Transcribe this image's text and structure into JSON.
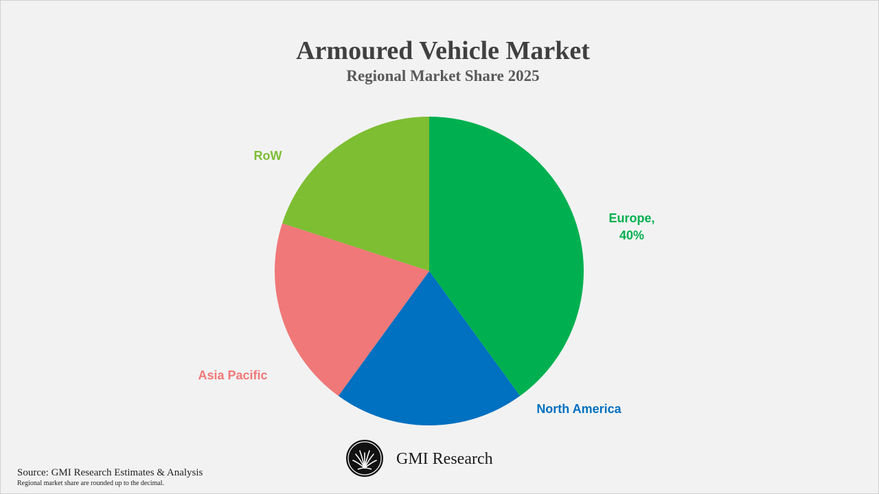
{
  "chart_data": {
    "type": "pie",
    "title": "Armoured Vehicle Market",
    "subtitle": "Regional Market Share 2025",
    "slices": [
      {
        "label": "Europe",
        "value": 40,
        "display": [
          "Europe,",
          "40%"
        ],
        "color": "#00b050"
      },
      {
        "label": "North America",
        "value": 20,
        "display": [
          "North America"
        ],
        "color": "#0070c0"
      },
      {
        "label": "Asia Pacific",
        "value": 20,
        "display": [
          "Asia Pacific"
        ],
        "color": "#f07878"
      },
      {
        "label": "RoW",
        "value": 20,
        "display": [
          "RoW"
        ],
        "color": "#7dbe32"
      }
    ],
    "start": "12 o'clock",
    "direction": "clockwise"
  },
  "brand": {
    "name": "GMI Research",
    "logo_icon": "gmi-research-logo"
  },
  "footer": {
    "source": "Source: GMI Research Estimates & Analysis",
    "note": "Regional market share are rounded up to the decimal."
  }
}
